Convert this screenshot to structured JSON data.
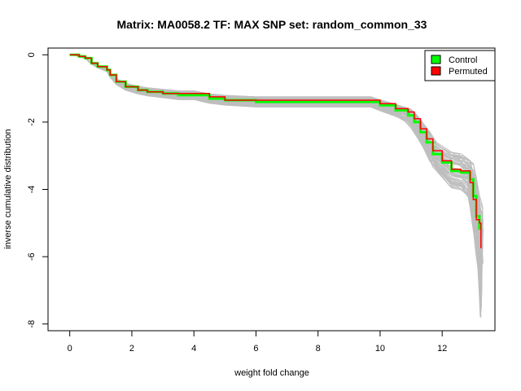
{
  "chart_data": {
    "type": "line",
    "title": "Matrix: MA0058.2 TF: MAX SNP set: random_common_33",
    "xlabel": "weight fold change",
    "ylabel": "inverse cumulative distribution",
    "xlim": [
      -0.7,
      13.7
    ],
    "ylim": [
      -8.2,
      0.2
    ],
    "x_ticks": [
      0,
      2,
      4,
      6,
      8,
      10,
      12
    ],
    "y_ticks": [
      0,
      -2,
      -4,
      -6,
      -8
    ],
    "legend": {
      "position": "top-right",
      "entries": [
        {
          "label": "Control",
          "color": "#00ff00"
        },
        {
          "label": "Permuted",
          "color": "#ff0000"
        }
      ]
    },
    "colors": {
      "background_series": "#bebebe",
      "control": "#00ff00",
      "permuted": "#ff0000"
    },
    "background_series_count": 60,
    "series": [
      {
        "name": "Control",
        "color": "#00ff00",
        "x": [
          0,
          0.1,
          0.3,
          0.5,
          0.7,
          0.9,
          1.2,
          1.3,
          1.5,
          1.8,
          2.2,
          2.5,
          3.0,
          3.5,
          4.0,
          4.5,
          5.0,
          6.0,
          7.0,
          8.0,
          9.0,
          9.7,
          10.0,
          10.5,
          10.9,
          11.1,
          11.3,
          11.5,
          11.7,
          12.0,
          12.3,
          12.6,
          12.9,
          13.0,
          13.1,
          13.2
        ],
        "y": [
          0,
          0,
          -0.05,
          -0.1,
          -0.25,
          -0.35,
          -0.45,
          -0.6,
          -0.8,
          -0.95,
          -1.05,
          -1.1,
          -1.15,
          -1.2,
          -1.2,
          -1.3,
          -1.35,
          -1.4,
          -1.4,
          -1.4,
          -1.4,
          -1.4,
          -1.5,
          -1.65,
          -1.8,
          -2.0,
          -2.3,
          -2.6,
          -2.95,
          -3.2,
          -3.45,
          -3.5,
          -3.7,
          -4.2,
          -4.8,
          -5.2
        ]
      },
      {
        "name": "Permuted",
        "color": "#ff0000",
        "x": [
          0,
          0.1,
          0.3,
          0.5,
          0.7,
          0.9,
          1.2,
          1.3,
          1.5,
          1.8,
          2.2,
          2.5,
          3.0,
          3.5,
          4.0,
          4.5,
          5.0,
          6.0,
          7.0,
          8.0,
          8.4,
          9.0,
          9.7,
          10.0,
          10.5,
          10.9,
          11.1,
          11.3,
          11.5,
          11.7,
          12.0,
          12.3,
          12.6,
          12.9,
          13.0,
          13.1,
          13.2,
          13.25
        ],
        "y": [
          0,
          0,
          -0.05,
          -0.1,
          -0.25,
          -0.35,
          -0.45,
          -0.6,
          -0.8,
          -0.95,
          -1.05,
          -1.1,
          -1.15,
          -1.15,
          -1.15,
          -1.25,
          -1.35,
          -1.35,
          -1.35,
          -1.35,
          -1.35,
          -1.35,
          -1.35,
          -1.45,
          -1.6,
          -1.7,
          -1.9,
          -2.2,
          -2.5,
          -2.85,
          -3.15,
          -3.4,
          -3.45,
          -3.8,
          -4.3,
          -4.9,
          -5.0,
          -5.75
        ]
      }
    ]
  }
}
